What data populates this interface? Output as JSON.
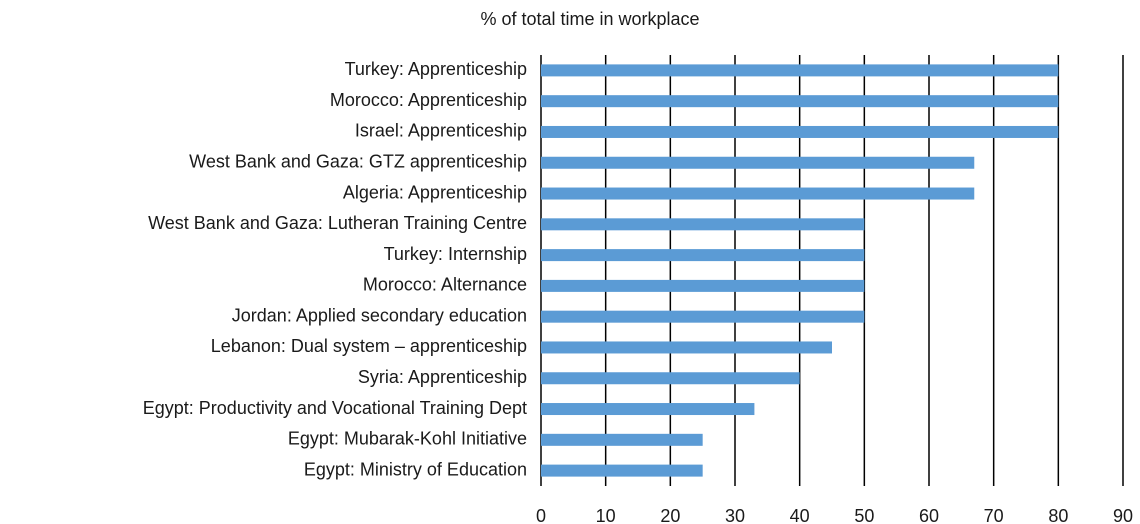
{
  "chart_data": {
    "type": "bar",
    "orientation": "horizontal",
    "title": "% of total time in workplace",
    "categories": [
      "Turkey: Apprenticeship",
      "Morocco: Apprenticeship",
      "Israel: Apprenticeship",
      "West Bank and Gaza: GTZ apprenticeship",
      "Algeria: Apprenticeship",
      "West Bank and Gaza: Lutheran Training Centre",
      "Turkey: Internship",
      "Morocco: Alternance",
      "Jordan: Applied secondary education",
      "Lebanon: Dual system – apprenticeship",
      "Syria: Apprenticeship",
      "Egypt: Productivity and Vocational Training Dept",
      "Egypt: Mubarak-Kohl Initiative",
      "Egypt: Ministry of Education"
    ],
    "values": [
      80,
      80,
      80,
      67,
      67,
      50,
      50,
      50,
      50,
      45,
      40,
      33,
      25,
      25
    ],
    "color": "#5b9bd5",
    "xlim": [
      0,
      90
    ],
    "xticks": [
      0,
      10,
      20,
      30,
      40,
      50,
      60,
      70,
      80,
      90
    ],
    "grid": true
  }
}
